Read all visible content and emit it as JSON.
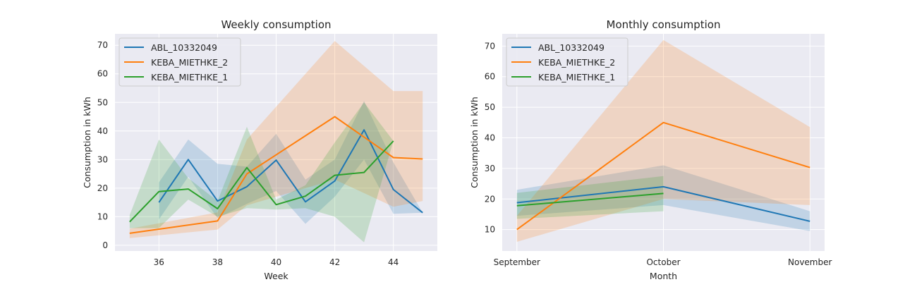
{
  "colors": {
    "background": "#ffffff",
    "plot_bg": "#EAEAF2",
    "grid": "#ffffff",
    "ABL_10332049": "#1f77b4",
    "KEBA_MIETHKE_2": "#ff7f0e",
    "KEBA_MIETHKE_1": "#2ca02c"
  },
  "chart_data": [
    {
      "type": "line",
      "title": "Weekly consumption",
      "xlabel": "Week",
      "ylabel": "Consumption in kWh",
      "xlim": [
        34.5,
        45.5
      ],
      "ylim": [
        -2,
        74
      ],
      "xticks": [
        36,
        38,
        40,
        42,
        44
      ],
      "yticks": [
        0,
        10,
        20,
        30,
        40,
        50,
        60,
        70
      ],
      "grid": true,
      "legend_loc": "top-left",
      "series": [
        {
          "name": "ABL_10332049",
          "x": [
            36,
            37,
            38,
            39,
            40,
            41,
            42,
            43,
            44,
            45
          ],
          "y": [
            15,
            30,
            15.5,
            20.5,
            29.8,
            15.2,
            22.5,
            40.4,
            19.5,
            11.4
          ],
          "lower": [
            9,
            24,
            9.5,
            14.5,
            19,
            7.5,
            17,
            30,
            11,
            11.4
          ],
          "upper": [
            22,
            37,
            28.5,
            27.5,
            39,
            23,
            30,
            50.5,
            29,
            11.4
          ]
        },
        {
          "name": "KEBA_MIETHKE_2",
          "x": [
            35,
            38,
            39,
            42,
            44,
            45
          ],
          "y": [
            4.2,
            8.5,
            25,
            45,
            30.7,
            30.2
          ],
          "lower": [
            2.5,
            5.5,
            14,
            23,
            13.5,
            15.5
          ],
          "upper": [
            5.8,
            11.5,
            37,
            71.5,
            54,
            54
          ]
        },
        {
          "name": "KEBA_MIETHKE_1",
          "x": [
            35,
            36,
            37,
            38,
            39,
            40,
            41,
            42,
            43,
            44
          ],
          "y": [
            8.2,
            18.8,
            19.7,
            12.8,
            27.2,
            14.2,
            17.2,
            24.5,
            25.5,
            36.5
          ],
          "lower": [
            6,
            6,
            16,
            10,
            13,
            12.5,
            13,
            10,
            1,
            36.5
          ],
          "upper": [
            10.5,
            37,
            23.5,
            15.5,
            41.5,
            16,
            21,
            36,
            50,
            36.5
          ]
        }
      ]
    },
    {
      "type": "line",
      "title": "Monthly consumption",
      "xlabel": "Month",
      "ylabel": "Consumption in kWh",
      "categories": [
        "September",
        "October",
        "November"
      ],
      "ylim": [
        3,
        74
      ],
      "yticks": [
        10,
        20,
        30,
        40,
        50,
        60,
        70
      ],
      "grid": true,
      "legend_loc": "top-left",
      "series": [
        {
          "name": "ABL_10332049",
          "y": [
            18.8,
            24,
            12.7
          ],
          "lower": [
            14.5,
            18,
            9.5
          ],
          "upper": [
            23,
            31,
            16
          ]
        },
        {
          "name": "KEBA_MIETHKE_2",
          "y": [
            10,
            45,
            30.3
          ],
          "lower": [
            6,
            20,
            18
          ],
          "upper": [
            14.5,
            72,
            43.5
          ]
        },
        {
          "name": "KEBA_MIETHKE_1",
          "y": [
            17.8,
            21.8,
            null
          ],
          "lower": [
            13.5,
            16,
            null
          ],
          "upper": [
            22,
            27.5,
            null
          ]
        }
      ]
    }
  ]
}
